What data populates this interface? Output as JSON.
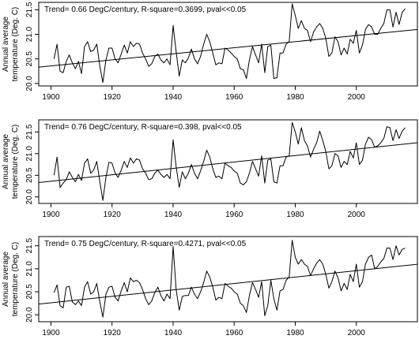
{
  "chart_data": [
    {
      "type": "line",
      "annotation": "Trend= 0.66 DegC/century, R-square=0.3699, pval<<0.05",
      "ylabel_line1": "Annual average",
      "ylabel_line2": "temperature (Deg. C)",
      "xlim": [
        1896,
        2020
      ],
      "ylim": [
        19.95,
        21.65
      ],
      "x_ticks": [
        1900,
        1920,
        1940,
        1960,
        1980,
        2000
      ],
      "y_ticks": [
        20.0,
        20.5,
        21.0,
        21.5
      ],
      "grid": false,
      "x": [
        1901,
        1902,
        1903,
        1904,
        1905,
        1906,
        1907,
        1908,
        1909,
        1910,
        1911,
        1912,
        1913,
        1914,
        1915,
        1916,
        1917,
        1918,
        1919,
        1920,
        1921,
        1922,
        1923,
        1924,
        1925,
        1926,
        1927,
        1928,
        1929,
        1930,
        1931,
        1932,
        1933,
        1934,
        1935,
        1936,
        1937,
        1938,
        1939,
        1940,
        1941,
        1942,
        1943,
        1944,
        1945,
        1946,
        1947,
        1948,
        1949,
        1950,
        1951,
        1952,
        1953,
        1954,
        1955,
        1956,
        1957,
        1958,
        1959,
        1960,
        1961,
        1962,
        1963,
        1964,
        1965,
        1966,
        1967,
        1968,
        1969,
        1970,
        1971,
        1972,
        1973,
        1974,
        1975,
        1976,
        1977,
        1978,
        1979,
        1980,
        1981,
        1982,
        1983,
        1984,
        1985,
        1986,
        1987,
        1988,
        1989,
        1990,
        1991,
        1992,
        1993,
        1994,
        1995,
        1996,
        1997,
        1998,
        1999,
        2000,
        2001,
        2002,
        2003,
        2004,
        2005,
        2006,
        2007,
        2008,
        2009,
        2010,
        2011,
        2012,
        2013,
        2014,
        2015,
        2016
      ],
      "y": [
        20.5,
        20.8,
        20.25,
        20.22,
        20.45,
        20.58,
        20.42,
        20.3,
        20.45,
        20.2,
        20.75,
        20.85,
        20.65,
        20.68,
        20.8,
        20.35,
        20.02,
        20.48,
        20.72,
        20.72,
        20.5,
        20.42,
        20.6,
        20.78,
        20.62,
        20.85,
        20.75,
        20.82,
        20.8,
        20.62,
        20.5,
        20.35,
        20.4,
        20.55,
        20.6,
        20.48,
        20.42,
        20.5,
        20.38,
        21.18,
        20.65,
        20.15,
        20.48,
        20.42,
        20.52,
        20.7,
        20.5,
        20.4,
        20.55,
        20.8,
        21.0,
        20.85,
        20.62,
        20.38,
        20.42,
        20.4,
        20.72,
        20.68,
        20.62,
        20.55,
        20.5,
        20.3,
        20.28,
        20.1,
        20.48,
        20.75,
        20.58,
        20.42,
        20.8,
        20.22,
        20.75,
        20.78,
        20.1,
        20.12,
        20.62,
        20.62,
        20.8,
        20.85,
        21.62,
        21.38,
        21.12,
        21.28,
        21.12,
        21.08,
        20.85,
        21.05,
        21.15,
        21.22,
        21.12,
        20.92,
        20.55,
        20.62,
        20.95,
        20.85,
        20.58,
        20.72,
        20.6,
        20.9,
        20.82,
        21.08,
        20.62,
        20.78,
        21.1,
        21.2,
        21.15,
        21.0,
        21.0,
        21.12,
        21.22,
        21.5,
        21.5,
        21.15,
        21.45,
        21.2,
        21.45,
        21.52
      ]
    },
    {
      "type": "line",
      "annotation": "Trend= 0.76 DegC/century, R-square=0.398, pval<<0.05",
      "ylabel_line1": "Annual average",
      "ylabel_line2": "temperature (Deg. C)",
      "xlim": [
        1896,
        2020
      ],
      "ylim": [
        19.85,
        21.78
      ],
      "x_ticks": [
        1900,
        1920,
        1940,
        1960,
        1980,
        2000
      ],
      "y_ticks": [
        20.0,
        20.5,
        21.0,
        21.5
      ],
      "grid": false,
      "x": [
        1901,
        1902,
        1903,
        1904,
        1905,
        1906,
        1907,
        1908,
        1909,
        1910,
        1911,
        1912,
        1913,
        1914,
        1915,
        1916,
        1917,
        1918,
        1919,
        1920,
        1921,
        1922,
        1923,
        1924,
        1925,
        1926,
        1927,
        1928,
        1929,
        1930,
        1931,
        1932,
        1933,
        1934,
        1935,
        1936,
        1937,
        1938,
        1939,
        1940,
        1941,
        1942,
        1943,
        1944,
        1945,
        1946,
        1947,
        1948,
        1949,
        1950,
        1951,
        1952,
        1953,
        1954,
        1955,
        1956,
        1957,
        1958,
        1959,
        1960,
        1961,
        1962,
        1963,
        1964,
        1965,
        1966,
        1967,
        1968,
        1969,
        1970,
        1971,
        1972,
        1973,
        1974,
        1975,
        1976,
        1977,
        1978,
        1979,
        1980,
        1981,
        1982,
        1983,
        1984,
        1985,
        1986,
        1987,
        1988,
        1989,
        1990,
        1991,
        1992,
        1993,
        1994,
        1995,
        1996,
        1997,
        1998,
        1999,
        2000,
        2001,
        2002,
        2003,
        2004,
        2005,
        2006,
        2007,
        2008,
        2009,
        2010,
        2011,
        2012,
        2013,
        2014,
        2015,
        2016
      ],
      "y": [
        20.5,
        20.92,
        20.22,
        20.32,
        20.4,
        20.58,
        20.45,
        20.35,
        20.52,
        20.38,
        20.78,
        20.88,
        20.55,
        20.62,
        20.82,
        20.35,
        19.92,
        20.45,
        20.8,
        20.78,
        20.55,
        20.45,
        20.62,
        20.82,
        20.68,
        20.9,
        20.78,
        20.88,
        20.85,
        20.65,
        20.55,
        20.4,
        20.42,
        20.55,
        20.62,
        20.52,
        20.45,
        20.52,
        20.42,
        21.32,
        20.7,
        20.22,
        20.58,
        20.42,
        20.55,
        20.75,
        20.55,
        20.42,
        20.6,
        20.82,
        21.08,
        20.92,
        20.65,
        20.45,
        20.48,
        20.42,
        20.78,
        20.72,
        20.68,
        20.6,
        20.55,
        20.32,
        20.28,
        20.35,
        20.55,
        20.82,
        20.65,
        20.48,
        20.95,
        20.32,
        20.85,
        20.88,
        20.35,
        20.32,
        20.72,
        20.72,
        20.92,
        20.95,
        21.72,
        21.5,
        21.22,
        21.6,
        21.3,
        21.18,
        20.92,
        21.1,
        21.25,
        21.52,
        21.3,
        21.05,
        20.65,
        20.72,
        21.0,
        20.95,
        20.68,
        20.82,
        20.75,
        21.05,
        20.9,
        21.25,
        20.75,
        20.85,
        21.22,
        21.38,
        21.32,
        21.15,
        21.18,
        21.25,
        21.35,
        21.62,
        21.6,
        21.3,
        21.55,
        21.35,
        21.52,
        21.6
      ]
    },
    {
      "type": "line",
      "annotation": "Trend= 0.75 DegC/century, R-square=0.4271, pval<<0.05",
      "ylabel_line1": "Annual average",
      "ylabel_line2": "temperature (Deg. C)",
      "xlim": [
        1896,
        2020
      ],
      "ylim": [
        19.85,
        21.7
      ],
      "x_ticks": [
        1900,
        1920,
        1940,
        1960,
        1980,
        2000
      ],
      "y_ticks": [
        20.0,
        20.5,
        21.0,
        21.5
      ],
      "grid": false,
      "x": [
        1901,
        1902,
        1903,
        1904,
        1905,
        1906,
        1907,
        1908,
        1909,
        1910,
        1911,
        1912,
        1913,
        1914,
        1915,
        1916,
        1917,
        1918,
        1919,
        1920,
        1921,
        1922,
        1923,
        1924,
        1925,
        1926,
        1927,
        1928,
        1929,
        1930,
        1931,
        1932,
        1933,
        1934,
        1935,
        1936,
        1937,
        1938,
        1939,
        1940,
        1941,
        1942,
        1943,
        1944,
        1945,
        1946,
        1947,
        1948,
        1949,
        1950,
        1951,
        1952,
        1953,
        1954,
        1955,
        1956,
        1957,
        1958,
        1959,
        1960,
        1961,
        1962,
        1963,
        1964,
        1965,
        1966,
        1967,
        1968,
        1969,
        1970,
        1971,
        1972,
        1973,
        1974,
        1975,
        1976,
        1977,
        1978,
        1979,
        1980,
        1981,
        1982,
        1983,
        1984,
        1985,
        1986,
        1987,
        1988,
        1989,
        1990,
        1991,
        1992,
        1993,
        1994,
        1995,
        1996,
        1997,
        1998,
        1999,
        2000,
        2001,
        2002,
        2003,
        2004,
        2005,
        2006,
        2007,
        2008,
        2009,
        2010,
        2011,
        2012,
        2013,
        2014,
        2015,
        2016
      ],
      "y": [
        20.48,
        20.65,
        20.2,
        20.15,
        20.6,
        20.62,
        20.28,
        20.22,
        20.3,
        20.2,
        20.6,
        20.72,
        20.45,
        20.5,
        20.68,
        20.28,
        19.95,
        20.45,
        20.6,
        20.62,
        20.38,
        20.3,
        20.52,
        20.7,
        20.5,
        20.8,
        20.72,
        20.75,
        20.7,
        20.55,
        20.35,
        20.22,
        20.3,
        20.48,
        20.6,
        20.42,
        20.3,
        20.45,
        20.35,
        21.48,
        20.55,
        20.1,
        20.4,
        20.42,
        20.42,
        20.6,
        20.45,
        20.35,
        20.5,
        20.7,
        20.95,
        20.82,
        20.6,
        20.32,
        20.38,
        20.35,
        20.68,
        20.62,
        20.58,
        20.5,
        20.45,
        20.25,
        20.2,
        20.05,
        20.42,
        20.7,
        20.55,
        20.38,
        20.72,
        19.98,
        20.2,
        20.75,
        20.35,
        20.1,
        20.52,
        20.55,
        20.75,
        20.82,
        21.62,
        21.25,
        21.1,
        21.2,
        21.1,
        21.05,
        20.85,
        21.0,
        21.12,
        21.2,
        21.1,
        20.88,
        20.58,
        20.72,
        20.95,
        20.8,
        20.52,
        20.68,
        20.55,
        20.88,
        20.72,
        21.1,
        20.6,
        20.72,
        21.1,
        21.25,
        21.3,
        21.0,
        21.05,
        21.15,
        21.22,
        21.45,
        21.45,
        21.2,
        21.5,
        21.3,
        21.42,
        21.45
      ]
    }
  ]
}
